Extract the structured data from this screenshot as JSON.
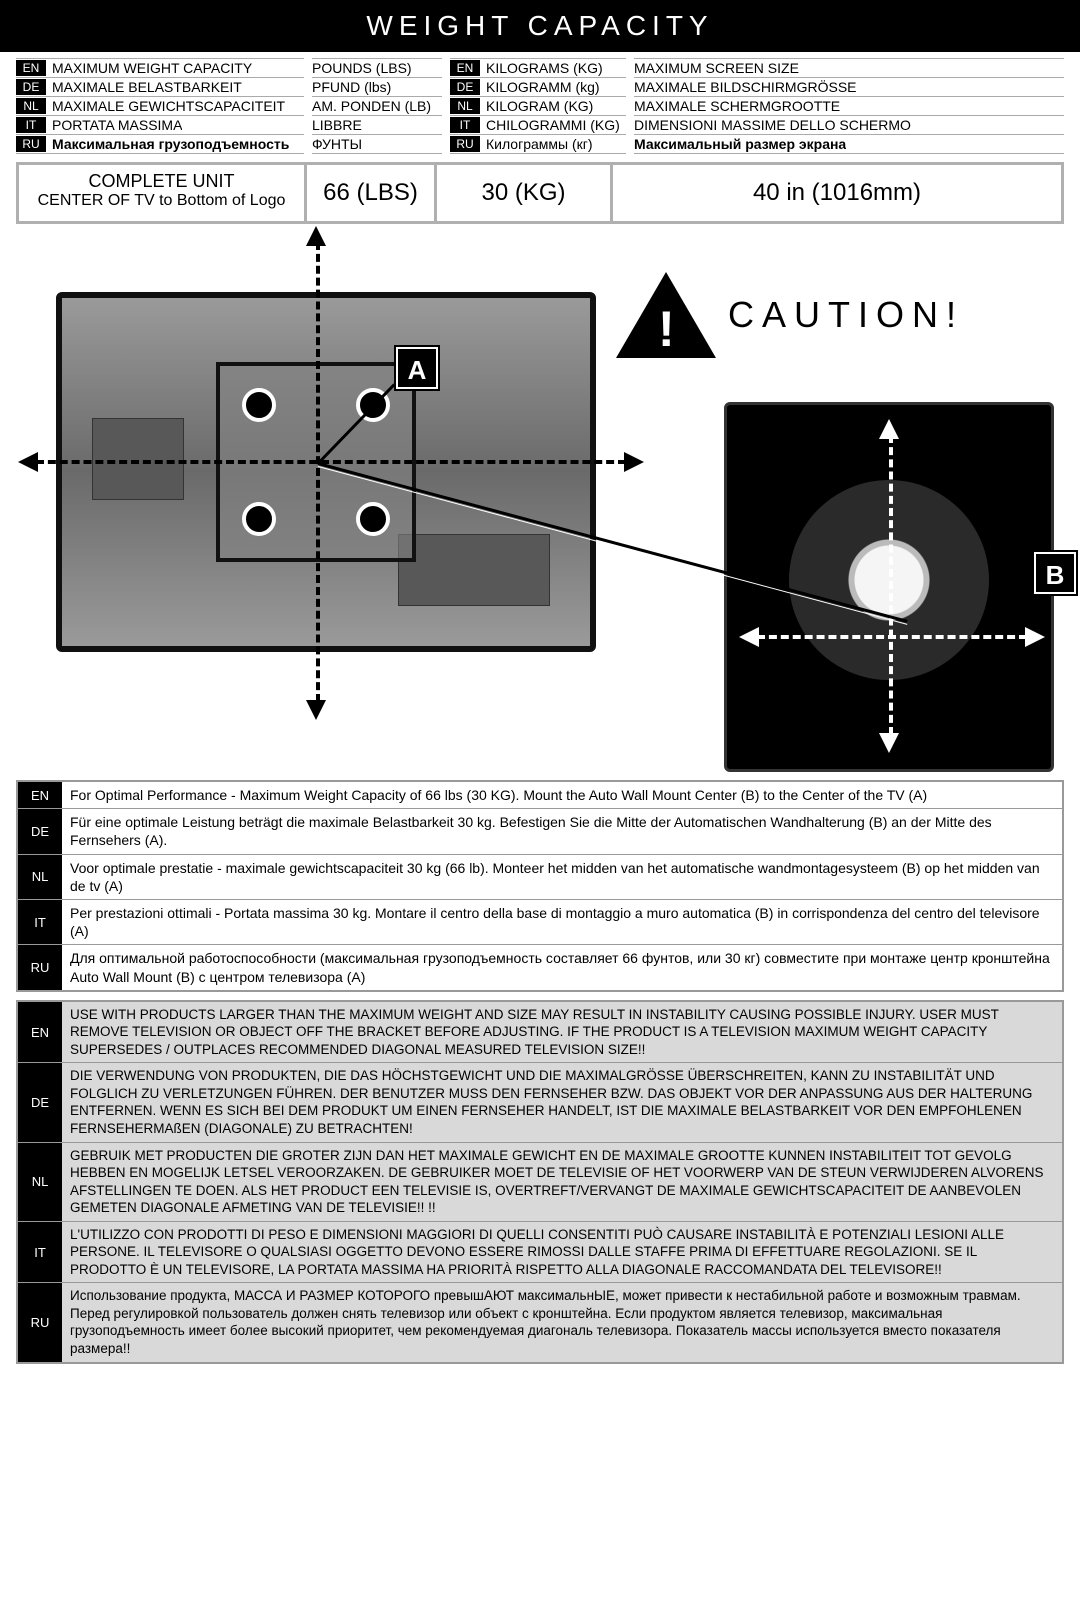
{
  "title": "WEIGHT CAPACITY",
  "colors": {
    "black": "#000000",
    "white": "#ffffff",
    "grey_border": "#b0b0b0",
    "warn_bg": "#d9d9d9"
  },
  "langs": [
    "EN",
    "DE",
    "NL",
    "IT",
    "RU"
  ],
  "header": {
    "col1": [
      {
        "lang": "EN",
        "text": "MAXIMUM WEIGHT CAPACITY"
      },
      {
        "lang": "DE",
        "text": "MAXIMALE BELASTBARKEIT"
      },
      {
        "lang": "NL",
        "text": "MAXIMALE GEWICHTSCAPACITEIT"
      },
      {
        "lang": "IT",
        "text": "PORTATA MASSIMA"
      },
      {
        "lang": "RU",
        "text": "Максимальная грузоподъемность",
        "bold": true
      }
    ],
    "col2": [
      {
        "text": "POUNDS (LBS)"
      },
      {
        "text": "PFUND (lbs)"
      },
      {
        "text": "AM. PONDEN (LB)"
      },
      {
        "text": "LIBBRE"
      },
      {
        "text": "ФУНТЫ"
      }
    ],
    "col3": [
      {
        "lang": "EN",
        "text": "KILOGRAMS (KG)"
      },
      {
        "lang": "DE",
        "text": "KILOGRAMM (kg)"
      },
      {
        "lang": "NL",
        "text": "KILOGRAM (KG)"
      },
      {
        "lang": "IT",
        "text": "CHILOGRAMMI (KG)"
      },
      {
        "lang": "RU",
        "text": "Килограммы (кг)"
      }
    ],
    "col4": [
      {
        "text": "MAXIMUM SCREEN SIZE"
      },
      {
        "text": "MAXIMALE BILDSCHIRMGRÖSSE"
      },
      {
        "text": "MAXIMALE SCHERMGROOTTE"
      },
      {
        "text": "DIMENSIONI MASSIME DELLO SCHERMO"
      },
      {
        "text": "Максимальный размер экрана",
        "bold": true
      }
    ]
  },
  "values": {
    "unit_line1": "COMPLETE UNIT",
    "unit_line2": "CENTER OF TV to Bottom of Logo",
    "lbs": "66 (LBS)",
    "kg": "30 (KG)",
    "screen": "40 in (1016mm)"
  },
  "labels": {
    "a": "A",
    "b": "B"
  },
  "caution": "CAUTION!",
  "notes": [
    {
      "lang": "EN",
      "text": "For Optimal Performance - Maximum Weight Capacity of 66 lbs (30 KG). Mount the Auto Wall Mount Center (B) to the Center of the TV (A)"
    },
    {
      "lang": "DE",
      "text": "Für eine optimale Leistung beträgt die maximale Belastbarkeit 30 kg. Befestigen Sie die Mitte der Automatischen Wandhalterung (B) an der Mitte des Fernsehers (A)."
    },
    {
      "lang": "NL",
      "text": "Voor optimale prestatie - maximale gewichtscapaciteit 30 kg (66 lb). Monteer het midden van het automatische wandmontagesysteem (B) op het midden van de tv (A)"
    },
    {
      "lang": "IT",
      "text": "Per prestazioni ottimali - Portata massima 30 kg. Montare il centro della base di montaggio a muro automatica (B) in corrispondenza del centro del televisore (A)"
    },
    {
      "lang": "RU",
      "text": "Для оптимальной работоспособности (максимальная грузоподъемность составляет 66 фунтов, или 30 кг) совместите при монтаже центр кронштейна Auto Wall Mount (B) с центром телевизора (A)"
    }
  ],
  "warnings": [
    {
      "lang": "EN",
      "text": "USE WITH PRODUCTS LARGER THAN THE MAXIMUM WEIGHT AND SIZE MAY RESULT IN INSTABILITY CAUSING POSSIBLE INJURY.  USER MUST REMOVE TELEVISION OR OBJECT OFF THE BRACKET BEFORE ADJUSTING.  IF THE PRODUCT IS A TELEVISION MAXIMUM WEIGHT CAPACITY SUPERSEDES / OUTPLACES RECOMMENDED DIAGONAL  MEASURED TELEVISION SIZE!!"
    },
    {
      "lang": "DE",
      "text": "DIE VERWENDUNG VON PRODUKTEN, DIE DAS HÖCHSTGEWICHT UND DIE MAXIMALGRÖSSE ÜBERSCHREITEN, KANN ZU INSTABILITÄT UND FOLGLICH ZU VERLETZUNGEN FÜHREN.  DER BENUTZER MUSS DEN FERNSEHER BZW. DAS OBJEKT VOR DER ANPASSUNG AUS DER HALTERUNG ENTFERNEN.  WENN ES SICH BEI DEM PRODUKT UM EINEN FERNSEHER HANDELT, IST DIE MAXIMALE BELASTBARKEIT VOR DEN EMPFOHLENEN FERNSEHERMAßEN (DIAGONALE) ZU BETRACHTEN!"
    },
    {
      "lang": "NL",
      "text": "GEBRUIK MET PRODUCTEN DIE GROTER ZIJN DAN HET MAXIMALE GEWICHT EN DE MAXIMALE GROOTTE KUNNEN INSTABILITEIT TOT GEVOLG HEBBEN EN MOGELIJK LETSEL VEROORZAKEN.  DE GEBRUIKER MOET DE TELEVISIE OF HET VOORWERP VAN DE STEUN VERWIJDEREN ALVORENS AFSTELLINGEN TE DOEN.  ALS HET PRODUCT EEN TELEVISIE IS, OVERTREFT/VERVANGT DE MAXIMALE GEWICHTSCAPACITEIT DE AANBEVOLEN GEMETEN DIAGONALE AFMETING VAN DE TELEVISIE!! !!"
    },
    {
      "lang": "IT",
      "text": "L'UTILIZZO CON PRODOTTI DI PESO E DIMENSIONI MAGGIORI DI QUELLI CONSENTITI PUÒ CAUSARE  INSTABILITÀ E POTENZIALI LESIONI ALLE PERSONE.  IL TELEVISORE O QUALSIASI OGGETTO DEVONO ESSERE RIMOSSI DALLE STAFFE PRIMA DI EFFETTUARE REGOLAZIONI.  SE IL PRODOTTO È UN TELEVISORE, LA PORTATA MASSIMA HA PRIORITÀ RISPETTO ALLA DIAGONALE RACCOMANDATA DEL TELEVISORE!!"
    },
    {
      "lang": "RU",
      "text": "Использование продукта, МАССА И РАЗМЕР КОТОРОГО превышАЮТ максимальнЫЕ, может привести к нестабильной работе и возможным травмам.  Перед регулировкой пользователь должен снять телевизор или объект с кронштейна.  Если продуктом является телевизор, максимальная грузоподъемность имеет более высокий приоритет, чем рекомендуемая диагональ телевизора.  Показатель массы используется вместо показателя размера!!"
    }
  ]
}
